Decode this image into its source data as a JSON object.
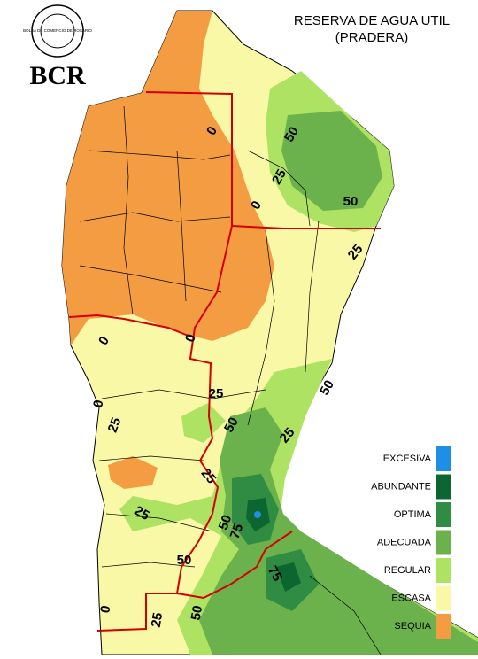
{
  "header": {
    "title": "RESERVA DE AGUA UTIL",
    "subtitle": "(PRADERA)",
    "logo_text": "BCR",
    "logo_ring": "BOLSA DE COMERCIO DE ROSARIO"
  },
  "legend": [
    {
      "label": "EXCESIVA",
      "color": "#1f8fe6"
    },
    {
      "label": "ABUNDANTE",
      "color": "#0b6630"
    },
    {
      "label": "OPTIMA",
      "color": "#2f8c42"
    },
    {
      "label": "ADECUADA",
      "color": "#6cb24c"
    },
    {
      "label": "REGULAR",
      "color": "#aee263"
    },
    {
      "label": "ESCASA",
      "color": "#f8f8a6"
    },
    {
      "label": "SEQUIA",
      "color": "#f49c42"
    }
  ],
  "contour_labels": [
    "0",
    "0",
    "25",
    "50",
    "50",
    "25",
    "0",
    "0",
    "25",
    "50",
    "0",
    "25",
    "50",
    "25",
    "25",
    "25",
    "50",
    "75",
    "50",
    "75",
    "0",
    "25",
    "50"
  ]
}
